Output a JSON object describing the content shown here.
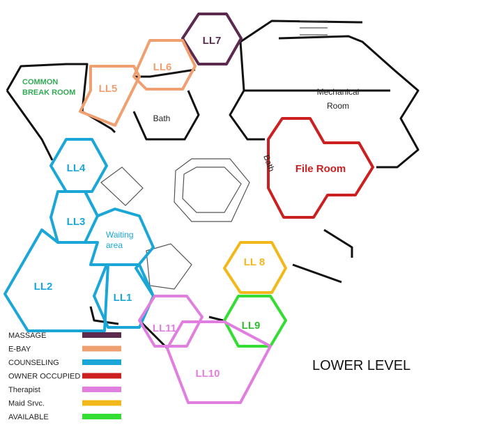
{
  "title": "LOWER LEVEL",
  "colors": {
    "massage": "#5c2a4f",
    "ebay": "#f0a070",
    "counseling": "#1aa7d8",
    "owner": "#cc1f1f",
    "therapist": "#e07fe0",
    "maid": "#f2b81a",
    "available": "#33dd33"
  },
  "rooms": {
    "ll1": "LL1",
    "ll2": "LL2",
    "ll3": "LL3",
    "ll4": "LL4",
    "ll5": "LL5",
    "ll6": "LL6",
    "ll7": "LL7",
    "ll8": "LL 8",
    "ll9": "LL9",
    "ll10": "LL10",
    "ll11": "LL11",
    "file_room": "File Room"
  },
  "labels": {
    "common_break_1": "COMMON",
    "common_break_2": "BREAK ROOM",
    "bath_top": "Bath",
    "bath_side": "Bath",
    "mechanical_1": "Mechanical",
    "mechanical_2": "Room",
    "waiting_1": "Waiting",
    "waiting_2": "area"
  },
  "legend": [
    {
      "label": "MASSAGE",
      "color": "#5c2a4f"
    },
    {
      "label": "E-BAY",
      "color": "#f0a070"
    },
    {
      "label": "COUNSELING",
      "color": "#1aa7d8"
    },
    {
      "label": "OWNER OCCUPIED",
      "color": "#cc1f1f"
    },
    {
      "label": "Therapist",
      "color": "#e07fe0"
    },
    {
      "label": "Maid Srvc.",
      "color": "#f2b81a"
    },
    {
      "label": "AVAILABLE",
      "color": "#33dd33"
    }
  ]
}
